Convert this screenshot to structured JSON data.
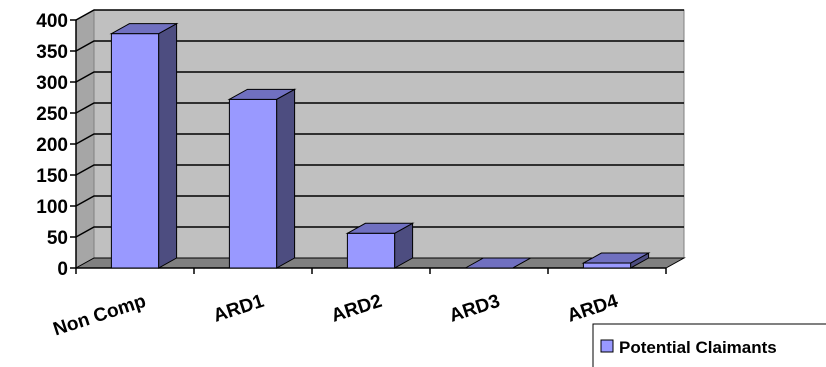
{
  "chart_data": {
    "type": "bar",
    "categories": [
      "Non Comp",
      "ARD1",
      "ARD2",
      "ARD3",
      "ARD4"
    ],
    "series": [
      {
        "name": "Potential Claimants",
        "values": [
          378,
          272,
          56,
          0,
          8
        ]
      }
    ],
    "title": "",
    "xlabel": "",
    "ylabel": "",
    "ylim": [
      0,
      400
    ],
    "yticks": [
      0,
      50,
      100,
      150,
      200,
      250,
      300,
      350,
      400
    ],
    "grid": true,
    "legend_position": "bottom-right",
    "colors": {
      "bar_front": "#9999ff",
      "bar_side": "#4d4d80",
      "bar_top": "#7070c0",
      "plot_back": "#c0c0c0",
      "floor": "#808080"
    }
  }
}
